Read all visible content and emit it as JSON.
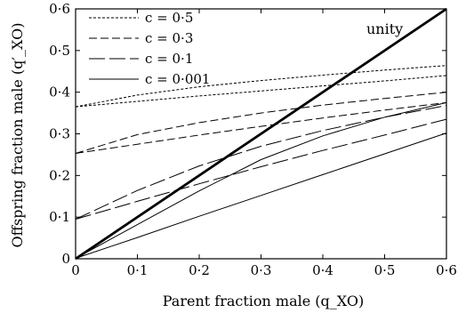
{
  "chart_data": {
    "type": "line",
    "xlabel": "Parent fraction male (q_XO)",
    "ylabel": "Offspring fraction male (q′_XO)",
    "xlim": [
      0,
      0.6
    ],
    "ylim": [
      0,
      0.6
    ],
    "x_ticks": [
      "0",
      "0·1",
      "0·2",
      "0·3",
      "0·4",
      "0·5",
      "0·6"
    ],
    "y_ticks": [
      "0",
      "0·1",
      "0·2",
      "0·3",
      "0·4",
      "0·5",
      "0·6"
    ],
    "legend_placement": "top-left",
    "legend": [
      "c = 0·5",
      "c = 0·3",
      "c = 0·1",
      "c = 0·001"
    ],
    "annotations": [
      "unity"
    ],
    "series": [
      {
        "name": "unity",
        "style": "thick-solid",
        "x": [
          0,
          0.6
        ],
        "y": [
          0,
          0.6
        ]
      },
      {
        "name": "c = 0·5",
        "style": "short-dash",
        "x": [
          0,
          0.1,
          0.2,
          0.3,
          0.4,
          0.5,
          0.6
        ],
        "y": [
          0.365,
          0.393,
          0.413,
          0.428,
          0.441,
          0.453,
          0.464
        ]
      },
      {
        "name": "c = 0·5",
        "style": "short-dash",
        "x": [
          0,
          0.1,
          0.2,
          0.3,
          0.4,
          0.5,
          0.6
        ],
        "y": [
          0.365,
          0.378,
          0.391,
          0.403,
          0.415,
          0.427,
          0.44
        ]
      },
      {
        "name": "c = 0·3",
        "style": "medium-dash",
        "x": [
          0,
          0.1,
          0.2,
          0.3,
          0.4,
          0.5,
          0.6
        ],
        "y": [
          0.253,
          0.298,
          0.327,
          0.35,
          0.369,
          0.385,
          0.4
        ]
      },
      {
        "name": "c = 0·3",
        "style": "medium-dash",
        "x": [
          0,
          0.1,
          0.2,
          0.3,
          0.4,
          0.5,
          0.6
        ],
        "y": [
          0.253,
          0.275,
          0.297,
          0.318,
          0.338,
          0.357,
          0.375
        ]
      },
      {
        "name": "c = 0·1",
        "style": "long-dash",
        "x": [
          0,
          0.1,
          0.2,
          0.3,
          0.4,
          0.5,
          0.6
        ],
        "y": [
          0.095,
          0.164,
          0.223,
          0.27,
          0.308,
          0.34,
          0.368
        ]
      },
      {
        "name": "c = 0·1",
        "style": "long-dash",
        "x": [
          0,
          0.1,
          0.2,
          0.3,
          0.4,
          0.5,
          0.6
        ],
        "y": [
          0.095,
          0.138,
          0.18,
          0.221,
          0.26,
          0.297,
          0.335
        ]
      },
      {
        "name": "c = 0·001",
        "style": "solid",
        "x": [
          0,
          0.1,
          0.2,
          0.3,
          0.4,
          0.5,
          0.6
        ],
        "y": [
          0.001,
          0.082,
          0.163,
          0.238,
          0.295,
          0.34,
          0.375
        ]
      },
      {
        "name": "c = 0·001",
        "style": "solid",
        "x": [
          0,
          0.1,
          0.2,
          0.3,
          0.4,
          0.5,
          0.6
        ],
        "y": [
          0.001,
          0.051,
          0.102,
          0.152,
          0.202,
          0.252,
          0.302
        ]
      }
    ]
  }
}
